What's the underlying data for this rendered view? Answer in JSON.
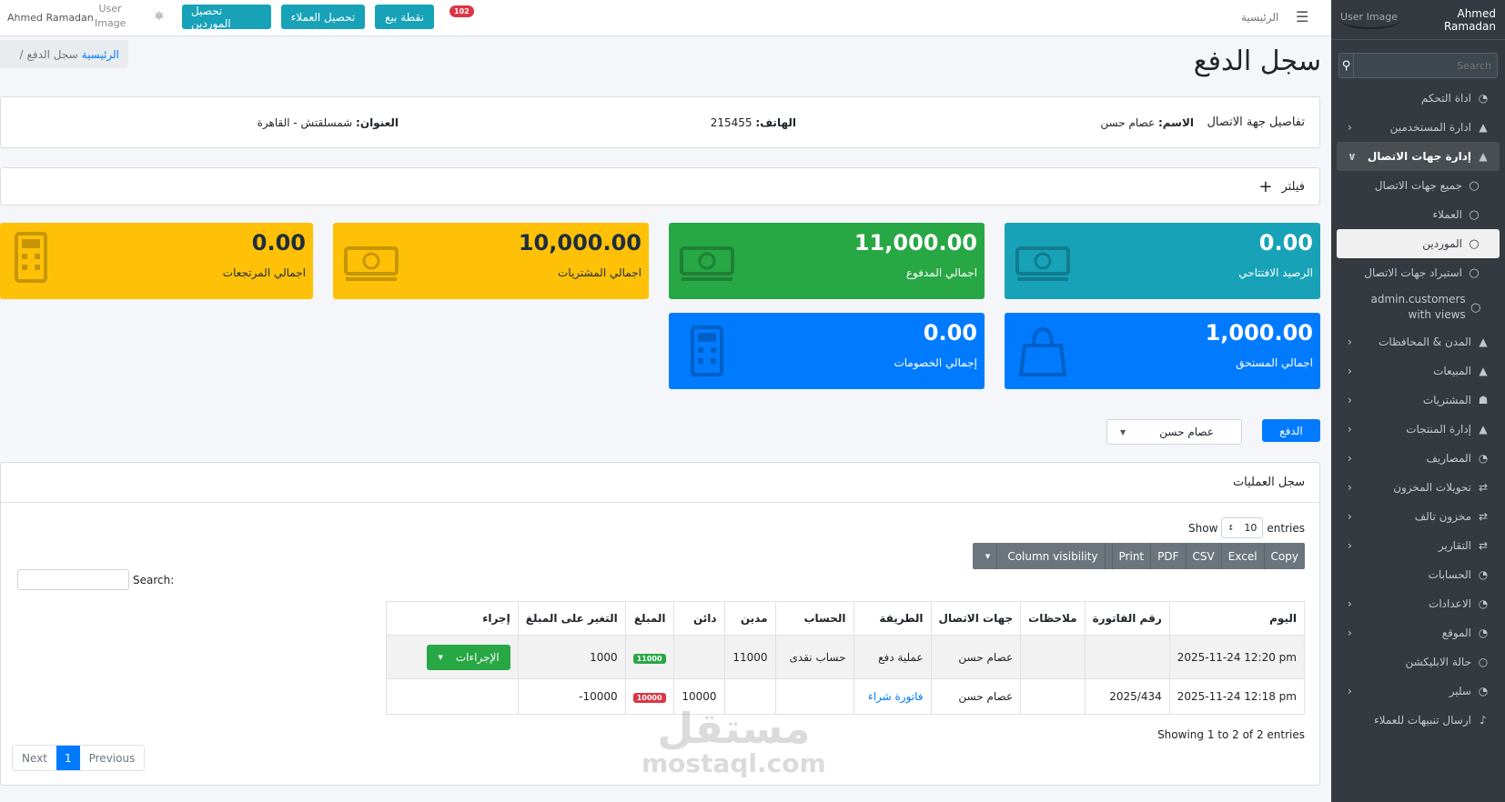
{
  "sidebar": {
    "user_name": "Ahmed Ramadan",
    "user_image_alt": "User Image",
    "search_placeholder": "Search",
    "items": [
      {
        "label": "اداة التحكم",
        "icon": "dashboard-icon",
        "arrow": false
      },
      {
        "label": "ادارة المستخدمين",
        "icon": "user-icon",
        "arrow": true
      },
      {
        "label": "إدارة جهات الاتصال",
        "icon": "user-icon",
        "arrow": true,
        "open": true
      },
      {
        "label": "جميع جهات الاتصال",
        "icon": "circle-icon",
        "sub": true
      },
      {
        "label": "العملاء",
        "icon": "circle-icon",
        "sub": true
      },
      {
        "label": "الموردين",
        "icon": "circle-icon",
        "sub": true,
        "active": true
      },
      {
        "label": "استيراد جهات الاتصال",
        "icon": "circle-icon",
        "sub": true
      },
      {
        "label": "admin.customers with views",
        "icon": "circle-icon",
        "sub": true,
        "twoline": true
      },
      {
        "label": "المدن & المحافظات",
        "icon": "user-icon",
        "arrow": true
      },
      {
        "label": "المبيعات",
        "icon": "user-icon",
        "arrow": true
      },
      {
        "label": "المشتريات",
        "icon": "cart-icon",
        "arrow": true
      },
      {
        "label": "إدارة المنتجات",
        "icon": "user-icon",
        "arrow": true
      },
      {
        "label": "المصاريف",
        "icon": "dashboard-icon",
        "arrow": true
      },
      {
        "label": "تحويلات المخزون",
        "icon": "exchange-icon",
        "arrow": true
      },
      {
        "label": "مخزون تالف",
        "icon": "exchange-icon",
        "arrow": true
      },
      {
        "label": "التقارير",
        "icon": "exchange-icon",
        "arrow": true
      },
      {
        "label": "الحسابات",
        "icon": "dashboard-icon",
        "arrow": false
      },
      {
        "label": "الاعدادات",
        "icon": "dashboard-icon",
        "arrow": true
      },
      {
        "label": "الموقع",
        "icon": "dashboard-icon",
        "arrow": true
      },
      {
        "label": "حالة الابليكشن",
        "icon": "circle-icon",
        "arrow": false
      },
      {
        "label": "سلير",
        "icon": "dashboard-icon",
        "arrow": true
      },
      {
        "label": "ارسال تنبيهات للعملاء",
        "icon": "bell-icon",
        "arrow": false
      }
    ]
  },
  "topbar": {
    "home": "الرئيسية",
    "notifications_count": "102",
    "btn_pos": "نقطة بيع",
    "btn_collect_customers": "تحصيل العملاء",
    "btn_collect_suppliers": "تحصيل الموردين",
    "user_image_alt": "User Image",
    "user_name": "Ahmed Ramadan"
  },
  "page": {
    "title": "سجل الدفع",
    "breadcrumb_home": "الرئيسية",
    "breadcrumb_current": "سجل الدفع"
  },
  "contact": {
    "title": "تفاصيل جهة الاتصال",
    "name_label": "الاسم:",
    "name": "عصام حسن",
    "phone_label": "الهاتف:",
    "phone": "215455",
    "address_label": "العنوان:",
    "address": "شمسلقتش - القاهرة"
  },
  "filter_label": "فيلتر",
  "stats": [
    {
      "value": "0.00",
      "label": "الرصيد الافتتاحي",
      "color": "#17a2b8"
    },
    {
      "value": "11,000.00",
      "label": "اجمالي المدفوع",
      "color": "#28a745"
    },
    {
      "value": "10,000.00",
      "label": "اجمالي المشتريات",
      "color": "#ffc107"
    },
    {
      "value": "0.00",
      "label": "اجمالي المرتجعات",
      "color": "#ffc107"
    },
    {
      "value": "1,000.00",
      "label": "اجمالي المستحق",
      "color": "#007bff"
    },
    {
      "value": "0.00",
      "label": "إجمالي الخصومات",
      "color": "#007bff"
    }
  ],
  "payment": {
    "button": "الدفع",
    "selected_contact": "عصام حسن"
  },
  "ops": {
    "title": "سجل العمليات",
    "show": "Show",
    "entries_value": "10",
    "entries": "entries",
    "buttons": [
      "Copy",
      "Excel",
      "CSV",
      "PDF",
      "Print",
      "Column visibility"
    ],
    "search_label": "Search:",
    "columns": [
      "اليوم",
      "رقم الفاتورة",
      "ملاحظات",
      "جهات الاتصال",
      "الطريقة",
      "الحساب",
      "مدين",
      "دائن",
      "المبلغ",
      "التغير على المبلغ",
      "إجراء"
    ],
    "rows": [
      {
        "date": "2025-11-24 12:20 pm",
        "invoice": "",
        "notes": "",
        "contact": "عصام حسن",
        "method": "عملية دفع",
        "account": "حساب نقدى",
        "debit": "11000",
        "credit": "",
        "amount": "11000",
        "change": "1000",
        "action": "الإجراءات"
      },
      {
        "date": "2025-11-24 12:18 pm",
        "invoice": "2025/434",
        "notes": "",
        "contact": "عصام حسن",
        "method": "فاتورة شراء",
        "account": "",
        "debit": "",
        "credit": "10000",
        "amount": "10000",
        "change": "10000-",
        "action": ""
      }
    ],
    "info": "Showing 1 to 2 of 2 entries",
    "prev": "Previous",
    "page": "1",
    "next": "Next"
  },
  "watermark": {
    "arabic": "مستقل",
    "latin": "mostaql.com"
  }
}
